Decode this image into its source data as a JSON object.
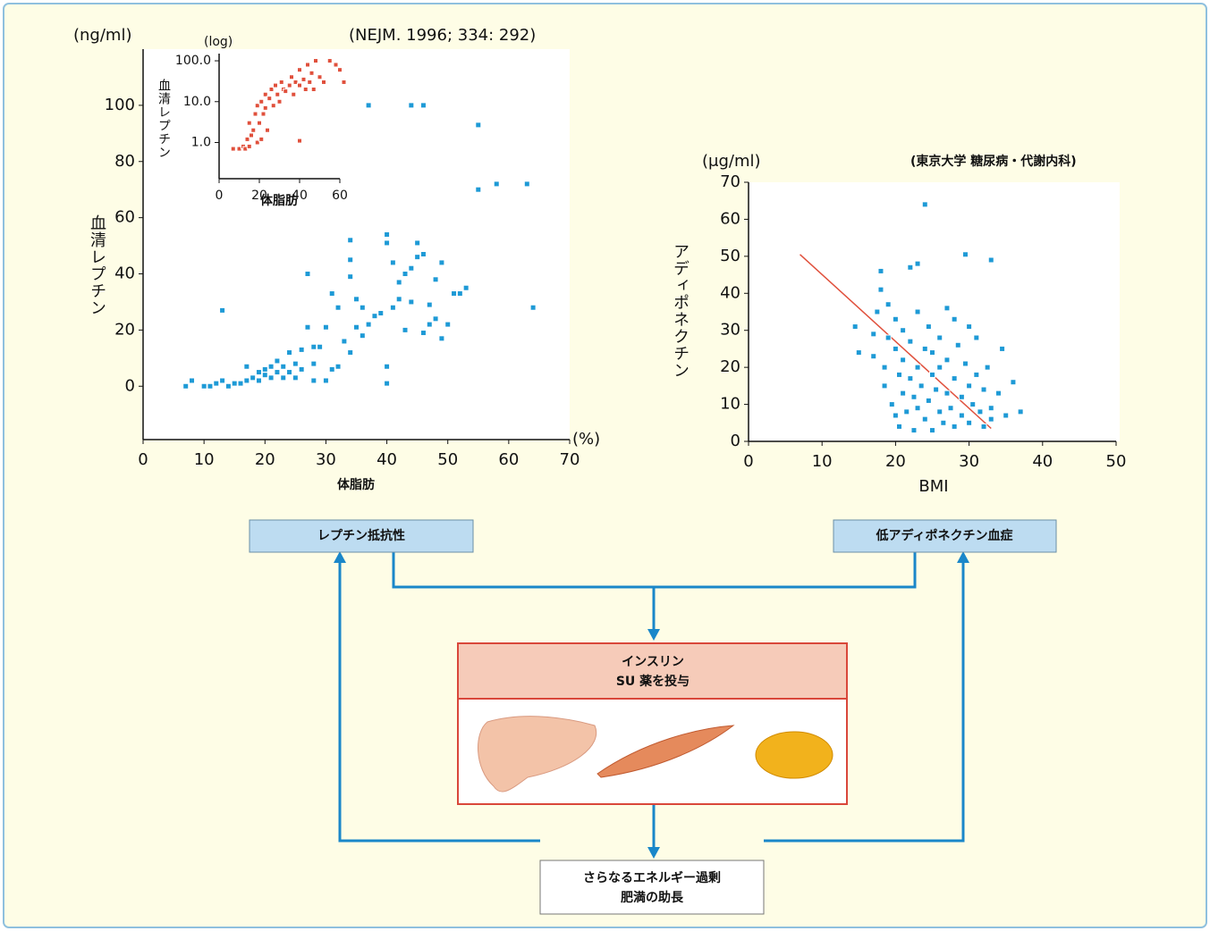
{
  "chart_data": [
    {
      "type": "scatter",
      "title": "(NEJM. 1996; 334: 292)",
      "y_unit": "(ng/ml)",
      "x_unit": "(%)",
      "ylabel": "血清レプチン",
      "xlabel": "体脂肪",
      "color": "#1e9ad6",
      "xlim": [
        0,
        70
      ],
      "ylim": [
        -19,
        120
      ],
      "xticks": [
        0,
        10,
        20,
        30,
        40,
        50,
        60,
        70
      ],
      "yticks": [
        0,
        20,
        40,
        60,
        80,
        100
      ],
      "x": [
        7,
        8,
        10,
        11,
        12,
        13,
        13,
        14,
        15,
        16,
        17,
        17,
        18,
        19,
        19,
        20,
        20,
        21,
        21,
        22,
        22,
        23,
        23,
        24,
        24,
        25,
        25,
        26,
        26,
        27,
        27,
        28,
        28,
        28,
        29,
        30,
        30,
        31,
        31,
        32,
        32,
        33,
        34,
        34,
        34,
        34,
        35,
        35,
        36,
        36,
        37,
        38,
        39,
        40,
        40,
        40,
        40,
        41,
        41,
        42,
        42,
        43,
        43,
        44,
        44,
        45,
        45,
        46,
        46,
        47,
        47,
        48,
        48,
        49,
        49,
        50,
        51,
        52,
        53,
        37,
        44,
        46,
        55,
        55,
        58,
        63,
        64
      ],
      "values": [
        0,
        2,
        0,
        0,
        1,
        2,
        27,
        0,
        1,
        1,
        2,
        7,
        3,
        2,
        5,
        4,
        6,
        3,
        7,
        5,
        9,
        3,
        7,
        5,
        12,
        8,
        3,
        13,
        6,
        21,
        40,
        14,
        8,
        2,
        14,
        21,
        2,
        6,
        33,
        7,
        28,
        16,
        45,
        52,
        39,
        12,
        31,
        21,
        28,
        18,
        22,
        25,
        26,
        1,
        54,
        51,
        7,
        28,
        44,
        37,
        31,
        20,
        40,
        30,
        42,
        51,
        46,
        47,
        19,
        29,
        22,
        24,
        38,
        44,
        17,
        22,
        33,
        33,
        35,
        100,
        100,
        100,
        93,
        70,
        72,
        72,
        28
      ]
    },
    {
      "type": "scatter",
      "y_unit": "(log)",
      "ylabel": "血清レプチン",
      "xlabel": "体脂肪",
      "color": "#e0503c",
      "log_y": true,
      "xlim": [
        0,
        60
      ],
      "ylim": [
        0.13,
        150
      ],
      "xticks": [
        0,
        20,
        40,
        60
      ],
      "yticks": [
        {
          "value": 1,
          "label": "1.0"
        },
        {
          "value": 10,
          "label": "10.0"
        },
        {
          "value": 100,
          "label": "100.0"
        }
      ],
      "x": [
        7,
        10,
        12,
        13,
        14,
        15,
        15,
        16,
        17,
        18,
        19,
        19,
        20,
        21,
        21,
        22,
        23,
        23,
        24,
        25,
        26,
        27,
        28,
        29,
        30,
        31,
        32,
        33,
        35,
        36,
        37,
        38,
        40,
        40,
        42,
        43,
        44,
        45,
        46,
        47,
        48,
        50,
        52,
        55,
        58,
        60,
        62,
        40
      ],
      "values": [
        0.7,
        0.7,
        0.8,
        0.7,
        1.2,
        0.8,
        3,
        1.5,
        2,
        5,
        1,
        8,
        3,
        10,
        1.2,
        5,
        7,
        15,
        2,
        12,
        20,
        8,
        25,
        15,
        10,
        30,
        20,
        18,
        25,
        40,
        15,
        30,
        25,
        60,
        35,
        20,
        80,
        30,
        50,
        20,
        100,
        40,
        30,
        100,
        80,
        60,
        30,
        1.1
      ]
    },
    {
      "type": "scatter",
      "title": "(東京大学 糖尿病・代謝内科)",
      "y_unit": "(μg/ml)",
      "ylabel": "アディポネクチン",
      "xlabel": "BMI",
      "color": "#1e9ad6",
      "xlim": [
        0,
        50
      ],
      "ylim": [
        0,
        70
      ],
      "xticks": [
        0,
        10,
        20,
        30,
        40,
        50
      ],
      "yticks": [
        0,
        10,
        20,
        30,
        40,
        50,
        60,
        70
      ],
      "trend_line": {
        "x": [
          7,
          33
        ],
        "y": [
          50.5,
          3.5
        ],
        "color": "#e0503c"
      },
      "x": [
        14.5,
        15,
        17,
        17,
        17.5,
        18,
        18,
        18.5,
        18.5,
        19,
        19,
        19.5,
        20,
        20,
        20,
        20.5,
        20.5,
        21,
        21,
        21,
        21.5,
        22,
        22,
        22,
        22.5,
        22.5,
        23,
        23,
        23,
        23,
        23.5,
        24,
        24,
        24,
        24.5,
        24.5,
        25,
        25,
        25,
        25.5,
        26,
        26,
        26,
        26.5,
        27,
        27,
        27,
        27.5,
        28,
        28,
        28,
        28.5,
        29,
        29,
        29.5,
        29.5,
        30,
        30,
        30,
        30.5,
        31,
        31,
        31.5,
        32,
        32,
        32.5,
        33,
        33,
        33,
        34,
        34.5,
        35,
        36,
        37
      ],
      "values": [
        31,
        24,
        23,
        29,
        35,
        46,
        41,
        15,
        20,
        37,
        28,
        10,
        7,
        25,
        33,
        18,
        4,
        13,
        30,
        22,
        8,
        47,
        17,
        27,
        3,
        12,
        20,
        35,
        48,
        9,
        15,
        64,
        25,
        6,
        31,
        11,
        18,
        3,
        24,
        14,
        8,
        28,
        20,
        5,
        36,
        13,
        22,
        9,
        33,
        17,
        4,
        26,
        12,
        7,
        50.5,
        21,
        31,
        15,
        5,
        10,
        28,
        18,
        8,
        14,
        4,
        20,
        49,
        9,
        6,
        13,
        25,
        7,
        16,
        8
      ]
    }
  ],
  "diagram": {
    "left_box": "レプチン抵抗性",
    "right_box": "低アディポネクチン血症",
    "center_box": [
      "インスリン",
      "SU 薬を投与"
    ],
    "bottom_box": [
      "さらなるエネルギー過剰",
      "肥満の助長"
    ]
  }
}
